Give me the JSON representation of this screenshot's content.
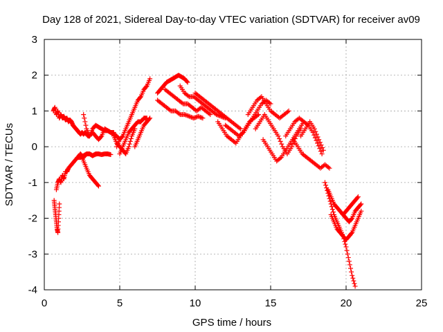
{
  "chart_data": {
    "type": "scatter",
    "title": "Day 128 of 2021, Sidereal Day-to-day VTEC variation (SDTVAR) for receiver av09",
    "xlabel": "GPS time / hours",
    "ylabel": "SDTVAR / TECUs",
    "xlim": [
      0,
      25
    ],
    "ylim": [
      -4,
      3
    ],
    "xticks": [
      "0",
      "5",
      "10",
      "15",
      "20",
      "25"
    ],
    "yticks": [
      "3",
      "2",
      "1",
      "0",
      "-1",
      "-2",
      "-3",
      "-4"
    ],
    "grid": true,
    "marker": "plus",
    "series": [
      {
        "name": "SDTVAR",
        "color": "#ff0000",
        "traces": [
          {
            "x": [
              0.65,
              0.7,
              0.75,
              0.8,
              0.85,
              0.9,
              0.95,
              1.0
            ],
            "y": [
              -1.5,
              -1.7,
              -1.9,
              -2.1,
              -2.3,
              -2.4,
              -2.0,
              -1.6
            ]
          },
          {
            "x": [
              0.8,
              0.9,
              1.0,
              1.1,
              1.2,
              1.3,
              1.4,
              1.5,
              1.6,
              1.8,
              2.0,
              2.2,
              2.4,
              2.6,
              2.8,
              3.0,
              3.2,
              3.5
            ],
            "y": [
              -1.2,
              -1.0,
              -0.9,
              -1.0,
              -0.8,
              -0.9,
              -0.7,
              -0.7,
              -0.6,
              -0.5,
              -0.4,
              -0.3,
              -0.2,
              -0.3,
              -0.2,
              -0.2,
              -0.25,
              -0.2
            ]
          },
          {
            "x": [
              2.2,
              2.4,
              2.6,
              2.8,
              3.0,
              3.2,
              3.4,
              3.6,
              3.8,
              4.0,
              4.2,
              4.4
            ],
            "y": [
              -0.3,
              -0.3,
              -0.25,
              -0.2,
              -0.2,
              -0.25,
              -0.2,
              -0.2,
              -0.22,
              -0.2,
              -0.2,
              -0.22
            ]
          },
          {
            "x": [
              2.4,
              2.6,
              2.8,
              3.0,
              3.2,
              3.4,
              3.6
            ],
            "y": [
              -0.2,
              -0.4,
              -0.6,
              -0.8,
              -0.9,
              -1.0,
              -1.1
            ]
          },
          {
            "x": [
              0.6,
              0.7,
              0.8,
              0.9,
              1.0,
              1.1,
              1.2,
              1.3,
              1.4,
              1.5,
              1.6,
              1.7,
              1.8,
              1.9,
              2.0,
              2.1,
              2.2,
              2.3,
              2.4,
              2.5,
              2.6,
              2.7,
              2.8,
              2.9,
              3.0
            ],
            "y": [
              1.0,
              1.1,
              0.9,
              1.0,
              0.8,
              0.9,
              0.8,
              0.85,
              0.75,
              0.8,
              0.7,
              0.75,
              0.7,
              0.6,
              0.55,
              0.5,
              0.45,
              0.4,
              0.35,
              0.4,
              0.35,
              0.4,
              0.35,
              0.3,
              0.3
            ]
          },
          {
            "x": [
              2.6,
              2.8,
              3.0,
              3.2,
              3.4,
              3.6,
              3.8,
              4.0,
              4.2,
              4.4,
              4.6,
              4.8,
              5.0
            ],
            "y": [
              0.9,
              0.5,
              0.3,
              0.4,
              0.3,
              0.2,
              0.3,
              0.5,
              0.45,
              0.4,
              0.35,
              0.3,
              0.2
            ]
          },
          {
            "x": [
              3.0,
              3.2,
              3.4,
              3.6,
              3.8,
              4.0,
              4.2,
              4.4,
              4.6
            ],
            "y": [
              0.3,
              0.5,
              0.6,
              0.55,
              0.5,
              0.45,
              0.45,
              0.4,
              0.4
            ]
          },
          {
            "x": [
              4.8,
              5.0,
              5.2,
              5.4,
              5.6,
              5.8,
              6.0,
              6.2,
              6.4,
              6.6,
              6.8,
              7.0
            ],
            "y": [
              0.0,
              0.2,
              0.3,
              0.5,
              0.7,
              0.9,
              1.1,
              1.3,
              1.4,
              1.6,
              1.7,
              1.9
            ]
          },
          {
            "x": [
              5.0,
              5.2,
              5.4,
              5.6,
              5.8,
              6.0,
              6.2,
              6.4,
              6.6,
              6.8
            ],
            "y": [
              -0.2,
              0.0,
              0.2,
              0.4,
              0.5,
              0.6,
              0.7,
              0.7,
              0.8,
              0.8
            ]
          },
          {
            "x": [
              4.6,
              4.8,
              5.0,
              5.2,
              5.4,
              5.6,
              5.8,
              6.0
            ],
            "y": [
              0.3,
              0.1,
              0.0,
              -0.1,
              -0.2,
              0.0,
              0.3,
              0.5
            ]
          },
          {
            "x": [
              6.0,
              6.2,
              6.4,
              6.6,
              6.8,
              7.0
            ],
            "y": [
              0.0,
              0.2,
              0.4,
              0.6,
              0.7,
              0.8
            ]
          },
          {
            "x": [
              7.5,
              7.7,
              7.9,
              8.1,
              8.3,
              8.5,
              8.7,
              8.9,
              9.1,
              9.3,
              9.5
            ],
            "y": [
              1.5,
              1.6,
              1.7,
              1.8,
              1.85,
              1.9,
              1.95,
              2.0,
              1.95,
              1.9,
              1.8
            ]
          },
          {
            "x": [
              7.5,
              7.8,
              8.1,
              8.4,
              8.7,
              9.0,
              9.3,
              9.6,
              9.9,
              10.2,
              10.5
            ],
            "y": [
              1.3,
              1.2,
              1.1,
              1.0,
              1.0,
              0.9,
              0.9,
              0.85,
              0.8,
              0.85,
              0.8
            ]
          },
          {
            "x": [
              8.0,
              8.3,
              8.6,
              8.9,
              9.2,
              9.5,
              9.8,
              10.1,
              10.4,
              10.7,
              11.0
            ],
            "y": [
              1.6,
              1.5,
              1.4,
              1.3,
              1.2,
              1.2,
              1.1,
              1.0,
              1.1,
              1.0,
              0.9
            ]
          },
          {
            "x": [
              9.0,
              9.3,
              9.6,
              9.9,
              10.2,
              10.5,
              10.8,
              11.1,
              11.4,
              11.7,
              12.0
            ],
            "y": [
              1.7,
              1.5,
              1.4,
              1.4,
              1.3,
              1.2,
              1.1,
              1.0,
              0.9,
              0.85,
              0.8
            ]
          },
          {
            "x": [
              10.0,
              10.3,
              10.6,
              10.9,
              11.2,
              11.5,
              11.8,
              12.1,
              12.4,
              12.7,
              13.0
            ],
            "y": [
              1.5,
              1.4,
              1.3,
              1.2,
              1.1,
              1.0,
              0.9,
              0.8,
              0.7,
              0.6,
              0.5
            ]
          },
          {
            "x": [
              11.5,
              11.8,
              12.1,
              12.4,
              12.7,
              13.0,
              13.3,
              13.6,
              13.9,
              14.2
            ],
            "y": [
              0.7,
              0.5,
              0.3,
              0.2,
              0.1,
              0.3,
              0.5,
              0.7,
              0.8,
              0.9
            ]
          },
          {
            "x": [
              12.0,
              12.3,
              12.6,
              12.9,
              13.2,
              13.5,
              13.8,
              14.1,
              14.4,
              14.7,
              15.0
            ],
            "y": [
              0.6,
              0.5,
              0.4,
              0.3,
              0.4,
              0.6,
              0.8,
              1.0,
              1.2,
              1.3,
              1.2
            ]
          },
          {
            "x": [
              13.5,
              13.8,
              14.1,
              14.4,
              14.7,
              15.0,
              15.3,
              15.6,
              15.9,
              16.2
            ],
            "y": [
              0.9,
              1.1,
              1.3,
              1.4,
              1.2,
              1.0,
              0.9,
              0.8,
              0.9,
              1.0
            ]
          },
          {
            "x": [
              14.0,
              14.3,
              14.6,
              14.9,
              15.2,
              15.5,
              15.8,
              16.1,
              16.4,
              16.7,
              17.0
            ],
            "y": [
              0.5,
              0.7,
              0.9,
              0.7,
              0.5,
              0.3,
              0.0,
              -0.2,
              0.0,
              0.3,
              0.5
            ]
          },
          {
            "x": [
              14.5,
              14.8,
              15.1,
              15.4,
              15.7,
              16.0,
              16.3,
              16.6,
              16.9,
              17.2
            ],
            "y": [
              0.2,
              0.0,
              -0.2,
              -0.4,
              -0.3,
              -0.1,
              0.1,
              0.3,
              0.5,
              0.7
            ]
          },
          {
            "x": [
              16.0,
              16.3,
              16.6,
              16.9,
              17.2,
              17.5,
              17.8,
              18.1,
              18.4
            ],
            "y": [
              0.3,
              0.5,
              0.7,
              0.8,
              0.7,
              0.6,
              0.4,
              0.1,
              -0.2
            ]
          },
          {
            "x": [
              16.5,
              16.8,
              17.1,
              17.4,
              17.7,
              18.0,
              18.3,
              18.6,
              18.9
            ],
            "y": [
              0.2,
              0.0,
              -0.2,
              -0.3,
              -0.4,
              -0.5,
              -0.6,
              -0.5,
              -0.6
            ]
          },
          {
            "x": [
              17.0,
              17.3,
              17.6,
              17.9,
              18.2,
              18.5
            ],
            "y": [
              0.3,
              0.5,
              0.7,
              0.5,
              0.2,
              -0.1
            ]
          },
          {
            "x": [
              18.6,
              18.8,
              19.0,
              19.2,
              19.4,
              19.6,
              19.8,
              20.0,
              20.2,
              20.4,
              20.6
            ],
            "y": [
              -1.0,
              -1.3,
              -1.6,
              -1.9,
              -2.1,
              -2.3,
              -2.5,
              -2.8,
              -3.2,
              -3.6,
              -3.9
            ]
          },
          {
            "x": [
              18.8,
              19.0,
              19.2,
              19.4,
              19.6,
              19.8,
              20.0,
              20.2,
              20.4,
              20.6,
              20.8,
              21.0
            ],
            "y": [
              -1.2,
              -1.4,
              -1.6,
              -1.7,
              -1.8,
              -1.9,
              -2.0,
              -2.1,
              -2.0,
              -1.8,
              -1.7,
              -1.6
            ]
          },
          {
            "x": [
              19.0,
              19.2,
              19.4,
              19.6,
              19.8,
              20.0,
              20.2,
              20.4,
              20.6,
              20.8,
              21.0
            ],
            "y": [
              -1.9,
              -2.1,
              -2.3,
              -2.4,
              -2.5,
              -2.6,
              -2.5,
              -2.4,
              -2.2,
              -2.0,
              -1.8
            ]
          },
          {
            "x": [
              19.8,
              20.0,
              20.2,
              20.4,
              20.6,
              20.8
            ],
            "y": [
              -1.9,
              -1.8,
              -1.7,
              -1.6,
              -1.5,
              -1.4
            ]
          }
        ]
      }
    ]
  }
}
